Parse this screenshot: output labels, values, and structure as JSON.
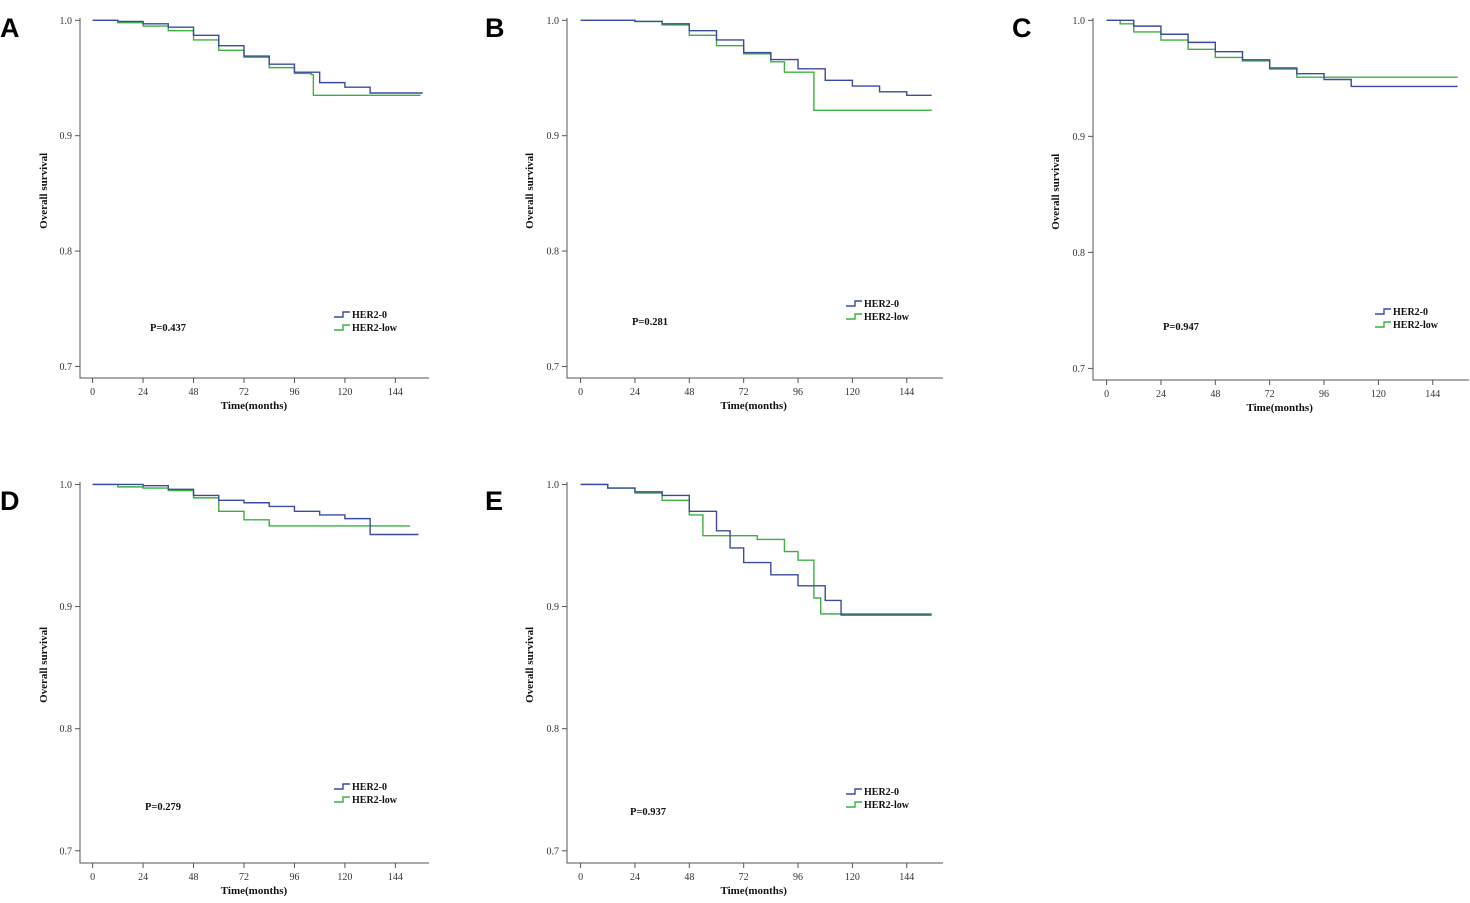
{
  "colors": {
    "her2_0": "#3B4BA0",
    "her2_low": "#3CB043"
  },
  "chart_data": [
    {
      "panel": "A",
      "type": "line",
      "xlabel": "Time(months)",
      "ylabel": "Overall survival",
      "xticks": [
        "0",
        "24",
        "48",
        "72",
        "96",
        "120",
        "144"
      ],
      "yticks": [
        "0.7",
        "0.8",
        "0.9",
        "1.0"
      ],
      "xlim": [
        -6,
        160
      ],
      "ylim": [
        0.69,
        1.002
      ],
      "pvalue": "P=0.437",
      "legend": [
        "HER2-0",
        "HER2-low"
      ],
      "series": [
        {
          "name": "HER2-0",
          "points": [
            [
              0,
              1.0
            ],
            [
              12,
              0.999
            ],
            [
              24,
              0.997
            ],
            [
              36,
              0.994
            ],
            [
              48,
              0.987
            ],
            [
              60,
              0.978
            ],
            [
              72,
              0.969
            ],
            [
              84,
              0.962
            ],
            [
              96,
              0.955
            ],
            [
              108,
              0.946
            ],
            [
              120,
              0.942
            ],
            [
              132,
              0.937
            ],
            [
              146,
              0.937
            ],
            [
              157,
              0.937
            ]
          ]
        },
        {
          "name": "HER2-low",
          "points": [
            [
              0,
              1.0
            ],
            [
              12,
              0.998
            ],
            [
              24,
              0.995
            ],
            [
              36,
              0.991
            ],
            [
              48,
              0.983
            ],
            [
              60,
              0.974
            ],
            [
              72,
              0.968
            ],
            [
              84,
              0.959
            ],
            [
              96,
              0.954
            ],
            [
              104,
              0.953
            ],
            [
              105,
              0.935
            ],
            [
              120,
              0.935
            ],
            [
              145,
              0.935
            ],
            [
              156,
              0.935
            ]
          ]
        }
      ]
    },
    {
      "panel": "B",
      "type": "line",
      "xlabel": "Time(months)",
      "ylabel": "Overall survival",
      "xticks": [
        "0",
        "24",
        "48",
        "72",
        "96",
        "120",
        "144"
      ],
      "yticks": [
        "0.7",
        "0.8",
        "0.9",
        "1.0"
      ],
      "xlim": [
        -6,
        160
      ],
      "ylim": [
        0.69,
        1.002
      ],
      "pvalue": "P=0.281",
      "legend": [
        "HER2-0",
        "HER2-low"
      ],
      "series": [
        {
          "name": "HER2-0",
          "points": [
            [
              0,
              1.0
            ],
            [
              12,
              1.0
            ],
            [
              24,
              0.999
            ],
            [
              36,
              0.997
            ],
            [
              48,
              0.991
            ],
            [
              60,
              0.983
            ],
            [
              72,
              0.972
            ],
            [
              84,
              0.966
            ],
            [
              96,
              0.958
            ],
            [
              108,
              0.948
            ],
            [
              120,
              0.943
            ],
            [
              132,
              0.938
            ],
            [
              144,
              0.935
            ],
            [
              155,
              0.935
            ]
          ]
        },
        {
          "name": "HER2-low",
          "points": [
            [
              0,
              1.0
            ],
            [
              24,
              0.999
            ],
            [
              36,
              0.996
            ],
            [
              48,
              0.987
            ],
            [
              60,
              0.978
            ],
            [
              72,
              0.971
            ],
            [
              84,
              0.964
            ],
            [
              90,
              0.955
            ],
            [
              102,
              0.955
            ],
            [
              103,
              0.922
            ],
            [
              120,
              0.922
            ],
            [
              155,
              0.922
            ]
          ]
        }
      ]
    },
    {
      "panel": "C",
      "type": "line",
      "xlabel": "Time(months)",
      "ylabel": "Overall survival",
      "xticks": [
        "0",
        "24",
        "48",
        "72",
        "96",
        "120",
        "144"
      ],
      "yticks": [
        "0.7",
        "0.8",
        "0.9",
        "1.0"
      ],
      "xlim": [
        -6,
        160
      ],
      "ylim": [
        0.69,
        1.002
      ],
      "pvalue": "P=0.947",
      "legend": [
        "HER2-0",
        "HER2-low"
      ],
      "series": [
        {
          "name": "HER2-0",
          "points": [
            [
              0,
              1.0
            ],
            [
              12,
              0.995
            ],
            [
              24,
              0.988
            ],
            [
              36,
              0.981
            ],
            [
              48,
              0.973
            ],
            [
              60,
              0.966
            ],
            [
              72,
              0.959
            ],
            [
              84,
              0.954
            ],
            [
              96,
              0.949
            ],
            [
              108,
              0.943
            ],
            [
              144,
              0.943
            ],
            [
              155,
              0.943
            ]
          ]
        },
        {
          "name": "HER2-low",
          "points": [
            [
              0,
              1.0
            ],
            [
              6,
              0.997
            ],
            [
              12,
              0.99
            ],
            [
              24,
              0.983
            ],
            [
              36,
              0.975
            ],
            [
              48,
              0.968
            ],
            [
              60,
              0.965
            ],
            [
              72,
              0.958
            ],
            [
              84,
              0.951
            ],
            [
              96,
              0.951
            ],
            [
              144,
              0.951
            ],
            [
              155,
              0.951
            ]
          ]
        }
      ]
    },
    {
      "panel": "D",
      "type": "line",
      "xlabel": "Time(months)",
      "ylabel": "Overall survival",
      "xticks": [
        "0",
        "24",
        "48",
        "72",
        "96",
        "120",
        "144"
      ],
      "yticks": [
        "0.7",
        "0.8",
        "0.9",
        "1.0"
      ],
      "xlim": [
        -6,
        160
      ],
      "ylim": [
        0.69,
        1.002
      ],
      "pvalue": "P=0.279",
      "legend": [
        "HER2-0",
        "HER2-low"
      ],
      "series": [
        {
          "name": "HER2-0",
          "points": [
            [
              0,
              1.0
            ],
            [
              12,
              1.0
            ],
            [
              24,
              0.999
            ],
            [
              36,
              0.996
            ],
            [
              48,
              0.991
            ],
            [
              60,
              0.987
            ],
            [
              72,
              0.985
            ],
            [
              84,
              0.982
            ],
            [
              96,
              0.978
            ],
            [
              108,
              0.975
            ],
            [
              120,
              0.972
            ],
            [
              132,
              0.959
            ],
            [
              144,
              0.959
            ],
            [
              155,
              0.959
            ]
          ]
        },
        {
          "name": "HER2-low",
          "points": [
            [
              0,
              1.0
            ],
            [
              12,
              0.998
            ],
            [
              24,
              0.997
            ],
            [
              36,
              0.995
            ],
            [
              48,
              0.989
            ],
            [
              60,
              0.978
            ],
            [
              72,
              0.971
            ],
            [
              84,
              0.966
            ],
            [
              96,
              0.966
            ],
            [
              120,
              0.966
            ],
            [
              144,
              0.966
            ],
            [
              151,
              0.966
            ]
          ]
        }
      ]
    },
    {
      "panel": "E",
      "type": "line",
      "xlabel": "Time(months)",
      "ylabel": "Overall survival",
      "xticks": [
        "0",
        "24",
        "48",
        "72",
        "96",
        "120",
        "144"
      ],
      "yticks": [
        "0.7",
        "0.8",
        "0.9",
        "1.0"
      ],
      "xlim": [
        -6,
        160
      ],
      "ylim": [
        0.69,
        1.002
      ],
      "pvalue": "P=0.937",
      "legend": [
        "HER2-0",
        "HER2-low"
      ],
      "series": [
        {
          "name": "HER2-0",
          "points": [
            [
              0,
              1.0
            ],
            [
              12,
              0.997
            ],
            [
              24,
              0.994
            ],
            [
              36,
              0.991
            ],
            [
              48,
              0.978
            ],
            [
              60,
              0.962
            ],
            [
              66,
              0.948
            ],
            [
              72,
              0.936
            ],
            [
              84,
              0.926
            ],
            [
              96,
              0.917
            ],
            [
              108,
              0.905
            ],
            [
              115,
              0.893
            ],
            [
              144,
              0.893
            ],
            [
              155,
              0.893
            ]
          ]
        },
        {
          "name": "HER2-low",
          "points": [
            [
              0,
              1.0
            ],
            [
              12,
              0.997
            ],
            [
              24,
              0.993
            ],
            [
              36,
              0.987
            ],
            [
              48,
              0.975
            ],
            [
              54,
              0.958
            ],
            [
              66,
              0.958
            ],
            [
              78,
              0.955
            ],
            [
              90,
              0.945
            ],
            [
              96,
              0.938
            ],
            [
              102,
              0.938
            ],
            [
              103,
              0.907
            ],
            [
              106,
              0.894
            ],
            [
              120,
              0.894
            ],
            [
              155,
              0.894
            ]
          ]
        }
      ]
    }
  ]
}
